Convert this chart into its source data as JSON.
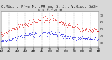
{
  "bg_color": "#d8d8d8",
  "plot_bg_color": "#ffffff",
  "red_color": "#dd0000",
  "blue_color": "#0000dd",
  "grid_color": "#888888",
  "ylim_min": 25,
  "ylim_max": 75,
  "xlim_min": 0,
  "xlim_max": 1440,
  "title_fontsize": 3.8,
  "tick_fontsize": 2.8,
  "seed": 42,
  "subsample": 6,
  "temp_start": 42,
  "temp_peak": 65,
  "temp_peak_time": 780,
  "temp_end": 48,
  "dew_start": 32,
  "dew_peak": 45,
  "dew_peak_time": 700,
  "dew_end": 36
}
